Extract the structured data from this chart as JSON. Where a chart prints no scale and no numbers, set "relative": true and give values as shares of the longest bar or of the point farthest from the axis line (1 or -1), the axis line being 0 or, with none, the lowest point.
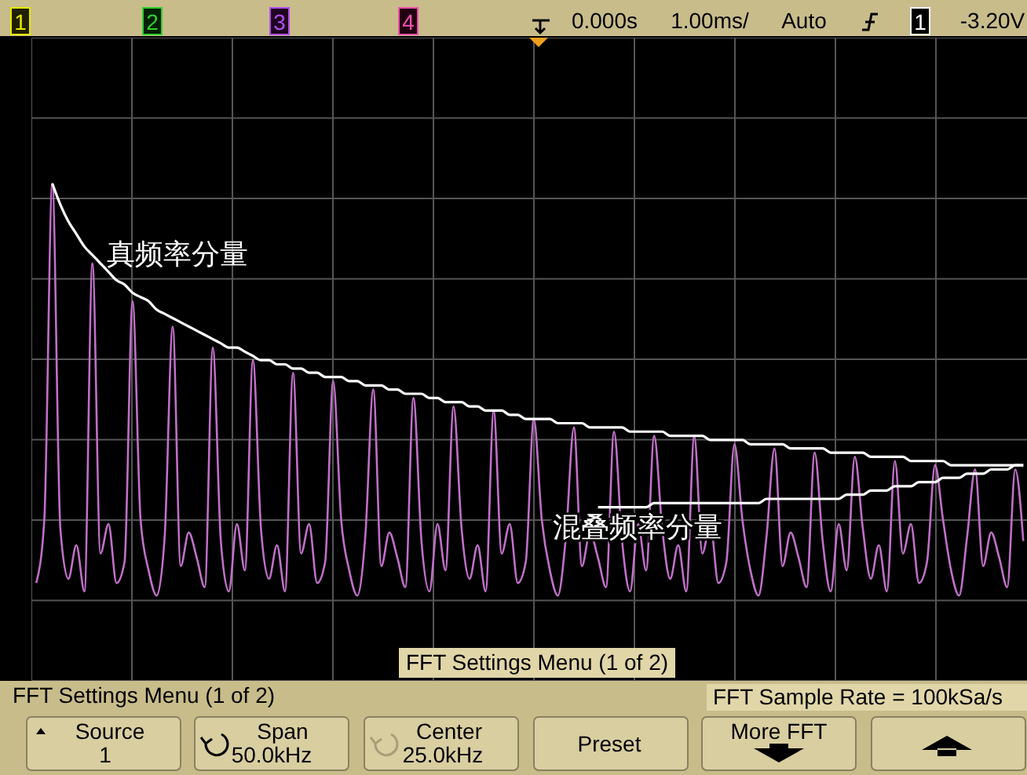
{
  "chart_data": {
    "type": "line",
    "relative": true,
    "grid": true,
    "marker": "none",
    "line_style": "solid",
    "categories": [
      null,
      null,
      null,
      null,
      null,
      null,
      null,
      null,
      null,
      null,
      null,
      null,
      null,
      null,
      null,
      null,
      null,
      null,
      null,
      null,
      null,
      null,
      null,
      null,
      null,
      null,
      null,
      null,
      null,
      null,
      null,
      null,
      null,
      null,
      null,
      null,
      null,
      null,
      null,
      null,
      null,
      null,
      null,
      null,
      null,
      null,
      null,
      null,
      null,
      null,
      null,
      null,
      null,
      null,
      null,
      null,
      null,
      null,
      null,
      null,
      null,
      null,
      null,
      null,
      null,
      null,
      null,
      null,
      null,
      null,
      null,
      null,
      null,
      null,
      null,
      null,
      null,
      null,
      null,
      null,
      null,
      null,
      null,
      null,
      null,
      null,
      null,
      null,
      null,
      null,
      null,
      null,
      null,
      null,
      null,
      null,
      null,
      null,
      null,
      null,
      null,
      null,
      null,
      null,
      null,
      null,
      null,
      null,
      null,
      null,
      null,
      null,
      null,
      null,
      null,
      null,
      null,
      null,
      null,
      null,
      null,
      null,
      null,
      null
    ],
    "series": [
      {
        "color": "#c070c8",
        "values": [
          0.05,
          0.2,
          1.0,
          0.18,
          0.06,
          0.14,
          0.03,
          0.81,
          0.12,
          0.19,
          0.05,
          0.1,
          0.72,
          0.2,
          0.08,
          0.02,
          0.16,
          0.66,
          0.09,
          0.17,
          0.11,
          0.04,
          0.61,
          0.15,
          0.03,
          0.19,
          0.08,
          0.58,
          0.18,
          0.06,
          0.14,
          0.03,
          0.55,
          0.12,
          0.19,
          0.05,
          0.1,
          0.53,
          0.2,
          0.08,
          0.02,
          0.16,
          0.51,
          0.09,
          0.17,
          0.11,
          0.04,
          0.49,
          0.15,
          0.03,
          0.19,
          0.08,
          0.47,
          0.18,
          0.06,
          0.14,
          0.03,
          0.46,
          0.12,
          0.19,
          0.05,
          0.1,
          0.44,
          0.2,
          0.08,
          0.02,
          0.16,
          0.42,
          0.09,
          0.17,
          0.11,
          0.04,
          0.41,
          0.15,
          0.03,
          0.19,
          0.08,
          0.4,
          0.18,
          0.06,
          0.14,
          0.03,
          0.4,
          0.12,
          0.19,
          0.05,
          0.1,
          0.38,
          0.2,
          0.08,
          0.02,
          0.16,
          0.37,
          0.09,
          0.17,
          0.11,
          0.04,
          0.36,
          0.15,
          0.03,
          0.19,
          0.08,
          0.35,
          0.18,
          0.06,
          0.14,
          0.03,
          0.34,
          0.12,
          0.19,
          0.05,
          0.1,
          0.33,
          0.2,
          0.08,
          0.02,
          0.16,
          0.32,
          0.09,
          0.17,
          0.11,
          0.04,
          0.32,
          0.15
        ]
      },
      {
        "name": "真频率分量",
        "color": "#ffffff",
        "values": [
          null,
          null,
          1.0,
          0.95,
          0.91,
          0.88,
          0.85,
          0.83,
          0.81,
          0.79,
          0.77,
          0.76,
          0.74,
          0.73,
          0.72,
          0.7,
          0.69,
          0.68,
          0.67,
          0.66,
          0.65,
          0.64,
          0.63,
          0.62,
          0.61,
          0.61,
          0.6,
          0.59,
          0.58,
          0.58,
          0.57,
          0.57,
          0.56,
          0.56,
          0.55,
          0.55,
          0.54,
          0.54,
          0.54,
          0.53,
          0.53,
          0.52,
          0.52,
          0.52,
          0.51,
          0.51,
          0.5,
          0.5,
          0.5,
          0.49,
          0.49,
          0.48,
          0.48,
          0.48,
          0.47,
          0.47,
          0.46,
          0.46,
          0.46,
          0.45,
          0.45,
          0.44,
          0.44,
          0.44,
          0.44,
          0.43,
          0.43,
          0.43,
          0.43,
          0.42,
          0.42,
          0.42,
          0.42,
          0.42,
          0.41,
          0.41,
          0.41,
          0.41,
          0.41,
          0.4,
          0.4,
          0.4,
          0.4,
          0.4,
          0.39,
          0.39,
          0.39,
          0.39,
          0.39,
          0.38,
          0.38,
          0.38,
          0.38,
          0.38,
          0.37,
          0.37,
          0.37,
          0.37,
          0.37,
          0.36,
          0.36,
          0.36,
          0.36,
          0.36,
          0.35,
          0.35,
          0.35,
          0.35,
          0.35,
          0.34,
          0.34,
          0.34,
          0.34,
          0.34,
          0.33,
          0.33,
          0.33,
          0.33,
          0.33,
          0.33,
          0.33,
          0.33,
          0.33,
          0.33
        ]
      },
      {
        "name": "混叠频率分量",
        "color": "#ffffff",
        "values": [
          null,
          null,
          null,
          null,
          null,
          null,
          null,
          null,
          null,
          null,
          null,
          null,
          null,
          null,
          null,
          null,
          null,
          null,
          null,
          null,
          null,
          null,
          null,
          null,
          null,
          null,
          null,
          null,
          null,
          null,
          null,
          null,
          null,
          null,
          null,
          null,
          null,
          null,
          null,
          null,
          null,
          null,
          null,
          null,
          null,
          null,
          null,
          null,
          null,
          null,
          null,
          null,
          null,
          null,
          null,
          null,
          null,
          null,
          null,
          null,
          null,
          null,
          null,
          null,
          null,
          null,
          null,
          null,
          null,
          null,
          0.23,
          0.23,
          0.23,
          0.23,
          0.23,
          0.23,
          0.23,
          0.24,
          0.24,
          0.24,
          0.24,
          0.24,
          0.24,
          0.24,
          0.24,
          0.24,
          0.24,
          0.24,
          0.24,
          0.24,
          0.24,
          0.25,
          0.25,
          0.25,
          0.25,
          0.25,
          0.25,
          0.25,
          0.25,
          0.25,
          0.25,
          0.26,
          0.26,
          0.26,
          0.27,
          0.27,
          0.27,
          0.28,
          0.28,
          0.28,
          0.29,
          0.29,
          0.29,
          0.3,
          0.3,
          0.3,
          0.31,
          0.31,
          0.31,
          0.32,
          0.32,
          0.32,
          0.33,
          0.33
        ]
      }
    ],
    "annotations": [
      "1",
      "2",
      "3",
      "4",
      "0.000s",
      "1.00ms/",
      "Auto",
      "1",
      "-3.20V",
      "FFT Settings Menu (1 of 2)",
      "FFT Settings Menu (1 of 2)",
      "FFT Sample Rate = 100kSa/s",
      "Source",
      "1",
      "Span",
      "50.0kHz",
      "Center",
      "25.0kHz",
      "Preset",
      "More FFT"
    ]
  }
}
